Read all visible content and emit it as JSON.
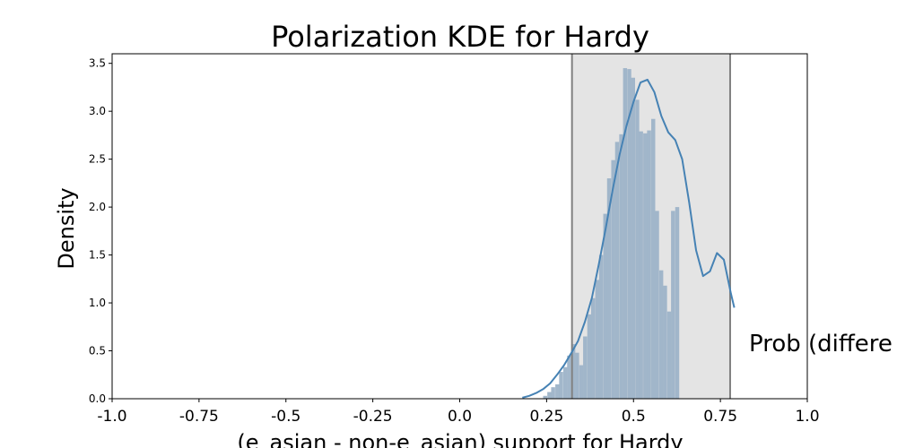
{
  "chart_data": {
    "type": "bar",
    "title": "Polarization KDE for Hardy",
    "xlabel": "(e_asian - non-e_asian) support for Hardy",
    "ylabel": "Density",
    "xlim": [
      -1.0,
      1.0
    ],
    "ylim": [
      0,
      3.6
    ],
    "xticks": [
      "-1.0",
      "-0.75",
      "-0.5",
      "-0.25",
      "0.0",
      "0.25",
      "0.5",
      "0.75",
      "1.0"
    ],
    "xtick_values": [
      -1.0,
      -0.75,
      -0.5,
      -0.25,
      0.0,
      0.25,
      0.5,
      0.75,
      1.0
    ],
    "yticks": [
      "0.0",
      "0.5",
      "1.0",
      "1.5",
      "2.0",
      "2.5",
      "3.0",
      "3.5"
    ],
    "ytick_values": [
      0.0,
      0.5,
      1.0,
      1.5,
      2.0,
      2.5,
      3.0,
      3.5
    ],
    "grid": false,
    "shaded_interval": [
      0.323,
      0.778
    ],
    "annotation": "Prob (differe",
    "colors": {
      "bars": "#9db3c8",
      "kde": "#4682b4",
      "shade": "#e4e4e4",
      "vline": "#808080"
    },
    "histogram": {
      "bin_width": 0.0115,
      "bins": [
        {
          "x": 0.24,
          "y": 0.03
        },
        {
          "x": 0.252,
          "y": 0.07
        },
        {
          "x": 0.263,
          "y": 0.12
        },
        {
          "x": 0.275,
          "y": 0.15
        },
        {
          "x": 0.286,
          "y": 0.28
        },
        {
          "x": 0.298,
          "y": 0.33
        },
        {
          "x": 0.309,
          "y": 0.45
        },
        {
          "x": 0.321,
          "y": 0.57
        },
        {
          "x": 0.332,
          "y": 0.48
        },
        {
          "x": 0.344,
          "y": 0.35
        },
        {
          "x": 0.355,
          "y": 0.65
        },
        {
          "x": 0.367,
          "y": 0.88
        },
        {
          "x": 0.378,
          "y": 1.05
        },
        {
          "x": 0.39,
          "y": 1.24
        },
        {
          "x": 0.401,
          "y": 1.5
        },
        {
          "x": 0.413,
          "y": 1.93
        },
        {
          "x": 0.424,
          "y": 2.3
        },
        {
          "x": 0.436,
          "y": 2.49
        },
        {
          "x": 0.447,
          "y": 2.68
        },
        {
          "x": 0.459,
          "y": 2.76
        },
        {
          "x": 0.47,
          "y": 3.45
        },
        {
          "x": 0.482,
          "y": 3.44
        },
        {
          "x": 0.493,
          "y": 3.35
        },
        {
          "x": 0.505,
          "y": 3.12
        },
        {
          "x": 0.516,
          "y": 2.79
        },
        {
          "x": 0.528,
          "y": 2.77
        },
        {
          "x": 0.539,
          "y": 2.8
        },
        {
          "x": 0.551,
          "y": 2.92
        },
        {
          "x": 0.562,
          "y": 1.96
        },
        {
          "x": 0.574,
          "y": 1.34
        },
        {
          "x": 0.585,
          "y": 1.18
        },
        {
          "x": 0.597,
          "y": 0.91
        },
        {
          "x": 0.608,
          "y": 1.96
        },
        {
          "x": 0.62,
          "y": 2.0
        }
      ]
    },
    "kde": {
      "x": [
        0.18,
        0.2,
        0.22,
        0.24,
        0.26,
        0.28,
        0.3,
        0.32,
        0.34,
        0.36,
        0.38,
        0.4,
        0.42,
        0.44,
        0.46,
        0.48,
        0.5,
        0.52,
        0.54,
        0.56,
        0.58,
        0.6,
        0.62,
        0.64,
        0.66,
        0.68,
        0.7,
        0.72,
        0.74,
        0.76,
        0.78,
        0.79
      ],
      "y": [
        0.01,
        0.03,
        0.06,
        0.1,
        0.16,
        0.25,
        0.35,
        0.47,
        0.6,
        0.8,
        1.05,
        1.4,
        1.78,
        2.18,
        2.55,
        2.85,
        3.1,
        3.3,
        3.33,
        3.2,
        2.95,
        2.78,
        2.7,
        2.5,
        2.05,
        1.55,
        1.28,
        1.33,
        1.52,
        1.45,
        1.1,
        0.95
      ]
    }
  }
}
